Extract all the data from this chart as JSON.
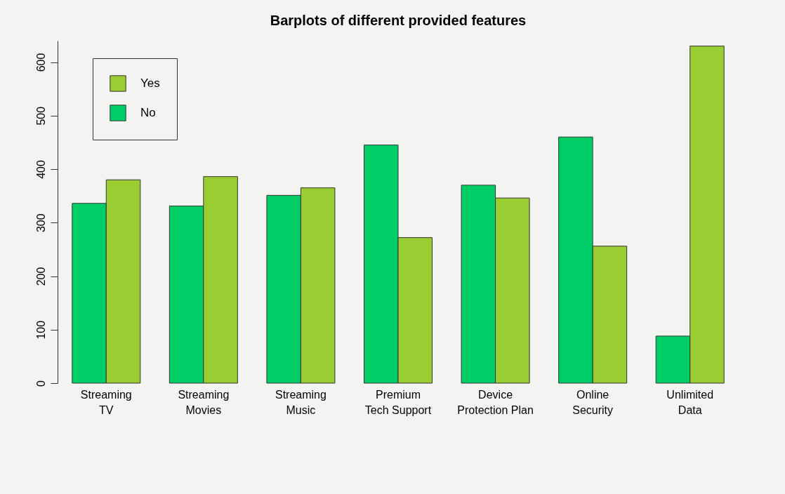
{
  "chart_data": {
    "type": "bar",
    "title": "Barplots of different provided features",
    "categories": [
      "Streaming\nTV",
      "Streaming\nMovies",
      "Streaming\nMusic",
      "Premium\nTech Support",
      "Device\nProtection Plan",
      "Online\nSecurity",
      "Unlimited\nData"
    ],
    "series": [
      {
        "name": "No",
        "color": "#00cd66",
        "values": [
          336,
          331,
          351,
          445,
          370,
          460,
          88
        ]
      },
      {
        "name": "Yes",
        "color": "#9acd32",
        "values": [
          380,
          386,
          365,
          272,
          346,
          256,
          630
        ]
      }
    ],
    "ylim": [
      0,
      640
    ],
    "yticks": [
      0,
      100,
      200,
      300,
      400,
      500,
      600
    ],
    "grid": false,
    "legend": "top left"
  }
}
